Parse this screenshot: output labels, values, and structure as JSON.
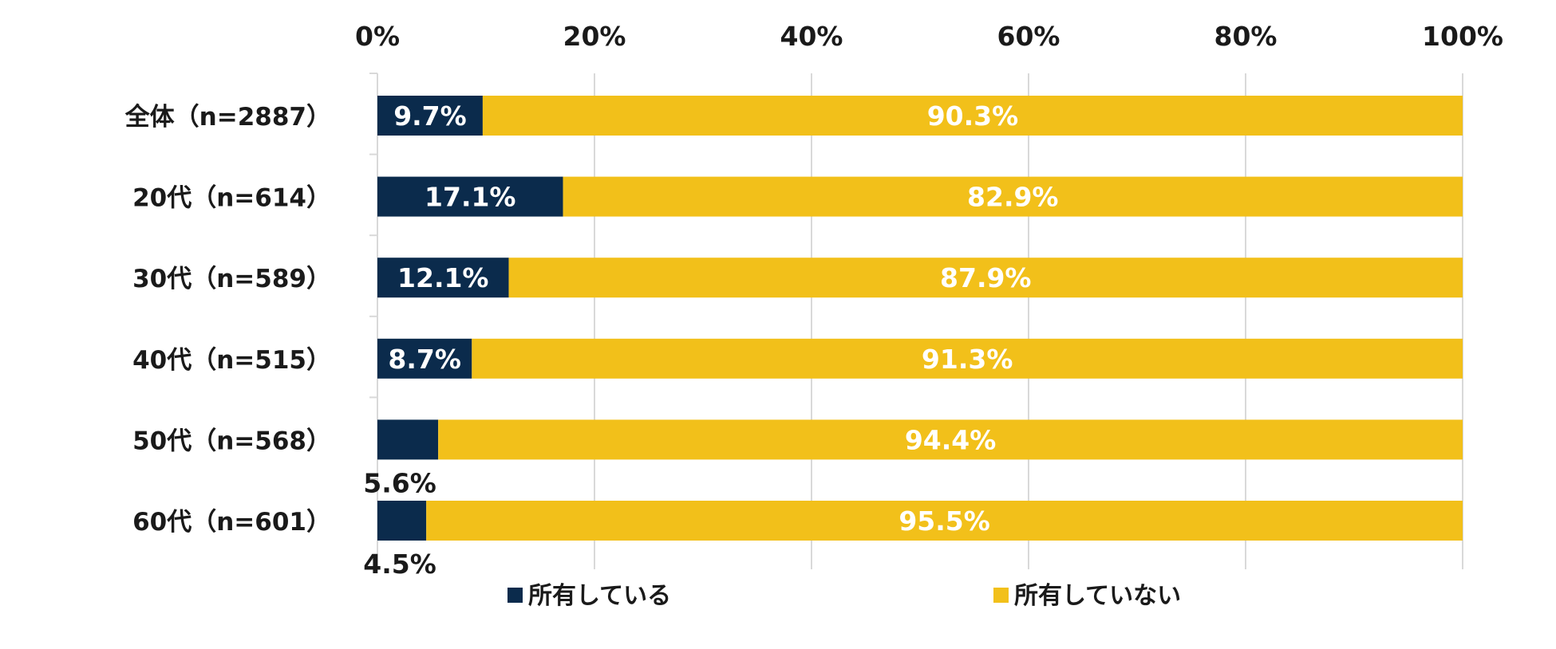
{
  "colors": {
    "owned": "#0b2b4c",
    "not_owned": "#f2c01a",
    "grid": "#d9d9d9",
    "text_dark": "#1a1a1a",
    "text_light": "#ffffff"
  },
  "chart_data": {
    "type": "bar",
    "orientation": "horizontal",
    "stacked": true,
    "categories": [
      "全体（n=2887）",
      "20代（n=614）",
      "30代（n=589）",
      "40代（n=515）",
      "50代（n=568）",
      "60代（n=601）"
    ],
    "series": [
      {
        "name": "所有している",
        "values": [
          9.7,
          17.1,
          12.1,
          8.7,
          5.6,
          4.5
        ],
        "labels": [
          "9.7%",
          "17.1%",
          "12.1%",
          "8.7%",
          "5.6%",
          "4.5%"
        ]
      },
      {
        "name": "所有していない",
        "values": [
          90.3,
          82.9,
          87.9,
          91.3,
          94.4,
          95.5
        ],
        "labels": [
          "90.3%",
          "82.9%",
          "87.9%",
          "91.3%",
          "94.4%",
          "95.5%"
        ]
      }
    ],
    "xlim": [
      0,
      100
    ],
    "xticks": [
      "0%",
      "20%",
      "40%",
      "60%",
      "80%",
      "100%"
    ],
    "x_axis_position": "top",
    "grid": true,
    "legend": "bottom",
    "title": "",
    "xlabel": "",
    "ylabel": ""
  }
}
